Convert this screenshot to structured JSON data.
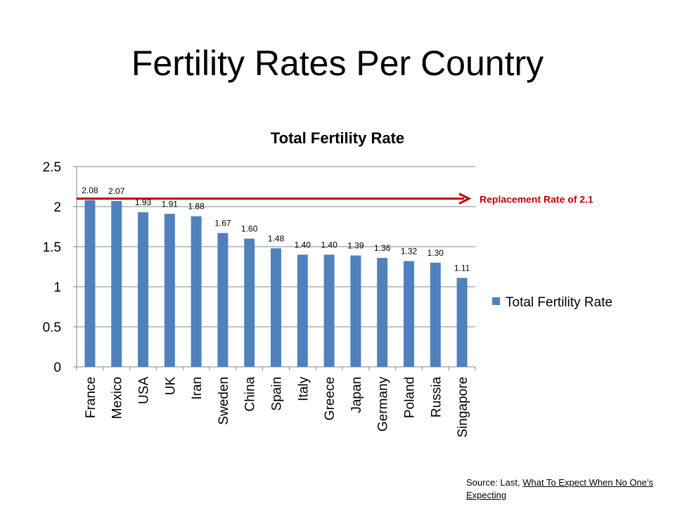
{
  "slide": {
    "title": "Fertility Rates Per Country",
    "source_prefix": "Source:  Last, ",
    "source_title": "What To Expect When No One’s Expecting"
  },
  "chart_data": {
    "type": "bar",
    "title": "Total Fertility Rate",
    "xlabel": "",
    "ylabel": "",
    "categories": [
      "France",
      "Mexico",
      "USA",
      "UK",
      "Iran",
      "Sweden",
      "China",
      "Spain",
      "Italy",
      "Greece",
      "Japan",
      "Germany",
      "Poland",
      "Russia",
      "Singapore"
    ],
    "series": [
      {
        "name": "Total Fertility Rate",
        "values": [
          2.08,
          2.07,
          1.93,
          1.91,
          1.88,
          1.67,
          1.6,
          1.48,
          1.4,
          1.4,
          1.39,
          1.36,
          1.32,
          1.3,
          1.11
        ],
        "value_labels": [
          "2.08",
          "2.07",
          "1.93",
          "1.91",
          "1.88",
          "1.67",
          "1.60",
          "1.48",
          "1.40",
          "1.40",
          "1.39",
          "1.36",
          "1.32",
          "1.30",
          "1.11"
        ],
        "color": "#4f81bd"
      }
    ],
    "ylim": [
      0,
      2.5
    ],
    "yticks": [
      0,
      0.5,
      1,
      1.5,
      2,
      2.5
    ],
    "ytick_labels": [
      "0",
      "0.5",
      "1",
      "1.5",
      "2",
      "2.5"
    ],
    "grid": true,
    "legend": {
      "position": "right",
      "label": "Total Fertility Rate"
    },
    "annotations": [
      {
        "type": "reference-arrow",
        "y": 2.1,
        "label": "Replacement Rate of 2.1",
        "color": "#c00000"
      }
    ]
  }
}
